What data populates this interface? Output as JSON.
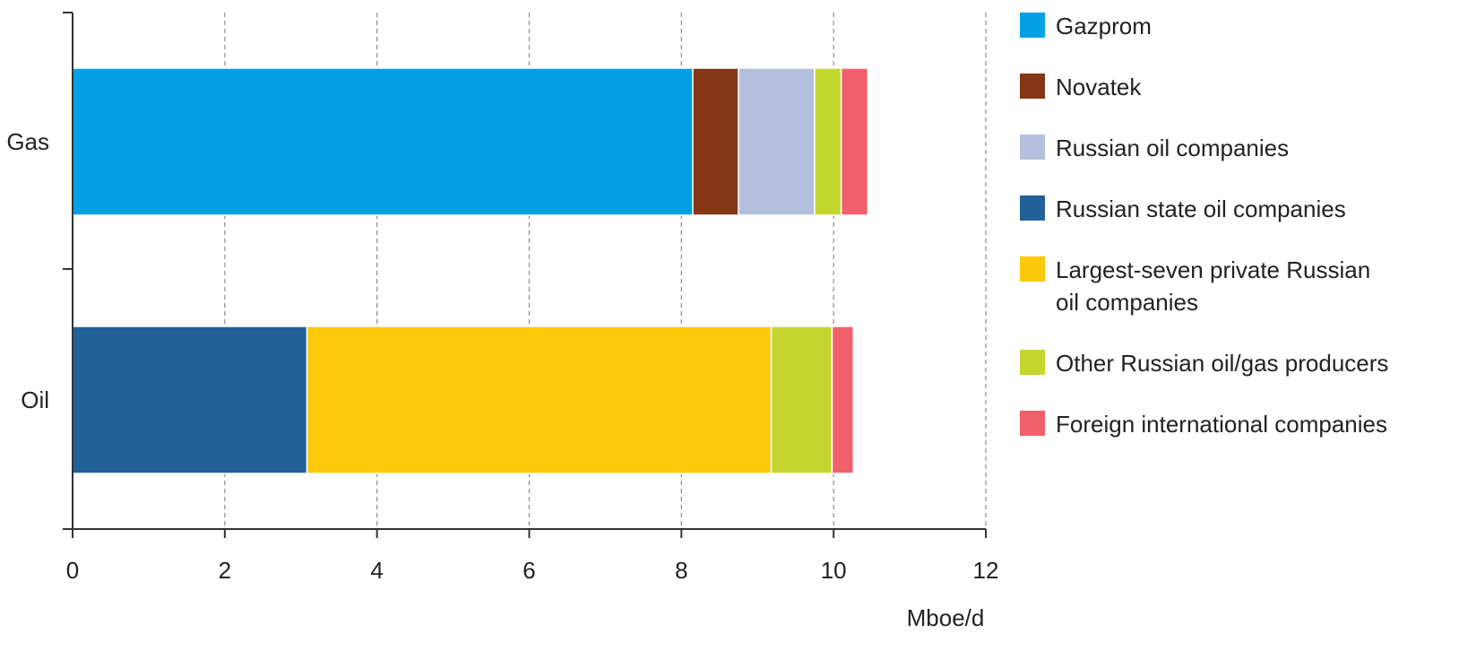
{
  "chart_data": {
    "type": "bar",
    "orientation": "horizontal",
    "stacked": true,
    "categories": [
      "Gas",
      "Oil"
    ],
    "xlabel": "Mboe/d",
    "xlim": [
      0,
      12
    ],
    "xticks": [
      0,
      2,
      4,
      6,
      8,
      10,
      12
    ],
    "grid": "vertical dashed",
    "legend_position": "right",
    "series": [
      {
        "name": "Gazprom",
        "color": "#00A0E3",
        "values": [
          8.15,
          0
        ]
      },
      {
        "name": "Novatek",
        "color": "#843615",
        "values": [
          0.6,
          0
        ]
      },
      {
        "name": "Russian oil companies",
        "color": "#B3BFDC",
        "values": [
          1.0,
          0
        ]
      },
      {
        "name": "Russian state oil companies",
        "color": "#23619A",
        "values": [
          0,
          3.08
        ]
      },
      {
        "name": "Largest-seven private Russian oil companies",
        "legend_lines": [
          "Largest-seven private Russian",
          "oil companies"
        ],
        "color": "#FCC90B",
        "values": [
          0,
          6.1
        ]
      },
      {
        "name": "Other Russian oil/gas producers",
        "color": "#C3D62F",
        "values": [
          0.35,
          0.8
        ]
      },
      {
        "name": "Foreign international companies",
        "color": "#F0606B",
        "values": [
          0.35,
          0.28
        ]
      }
    ]
  }
}
